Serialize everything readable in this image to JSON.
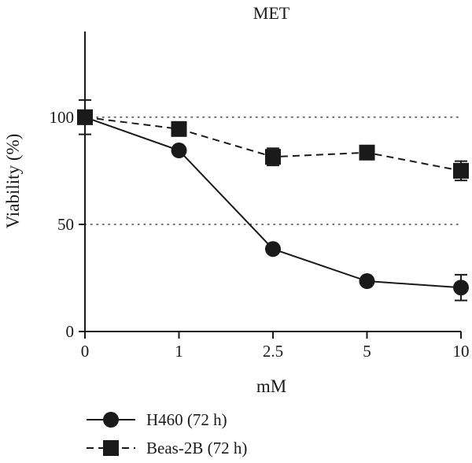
{
  "chart_data": {
    "type": "line",
    "title": "MET",
    "xlabel": "mM",
    "ylabel": "Viability (%)",
    "categories": [
      "0",
      "1",
      "2.5",
      "5",
      "10"
    ],
    "ylim": [
      0,
      140
    ],
    "yticks": [
      0,
      50,
      100
    ],
    "reference_lines": [
      50,
      100
    ],
    "legend_position": "bottom-left",
    "series": [
      {
        "name": "H460 (72 h)",
        "marker": "circle",
        "line_style": "solid",
        "color": "#1a1a1a",
        "values": [
          100,
          84.5,
          38.5,
          23.5,
          20.5
        ],
        "errors": [
          8,
          1.5,
          1.5,
          1,
          6
        ]
      },
      {
        "name": "Beas-2B (72 h)",
        "marker": "square",
        "line_style": "dashed",
        "color": "#1a1a1a",
        "values": [
          100,
          94.5,
          81.5,
          83.5,
          75
        ],
        "errors": [
          3,
          1.5,
          4,
          1.5,
          4.5
        ]
      }
    ]
  }
}
